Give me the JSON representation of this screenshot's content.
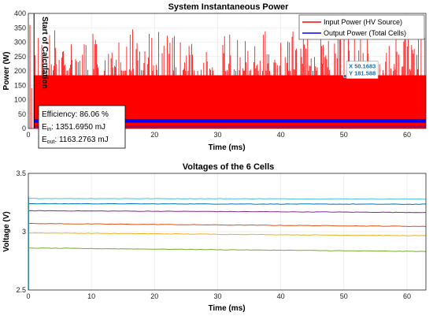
{
  "chart_data": [
    {
      "type": "line",
      "title": "System Instantaneous Power",
      "xlabel": "Time (ms)",
      "ylabel": "Power (W)",
      "xlim": [
        0,
        63
      ],
      "ylim": [
        0,
        400
      ],
      "xticks": [
        "0",
        "10",
        "20",
        "30",
        "40",
        "50",
        "60"
      ],
      "yticks": [
        "0",
        "50",
        "100",
        "150",
        "200",
        "250",
        "300",
        "350",
        "400"
      ],
      "grid": true,
      "legend_position": "top-right",
      "series": [
        {
          "name": "Input Power (HV Source)",
          "color": "#ff0000",
          "baseline_w": 185,
          "peak_range_w": [
            200,
            350
          ]
        },
        {
          "name": "Output Power (Total Cells)",
          "color": "#0000ff",
          "range_w": [
            20,
            33
          ]
        }
      ],
      "annotations": {
        "vertical_line_label": "Start of Calculation",
        "vertical_line_x_ms": 0.9,
        "efficiency_text": "Efficiency: 86.06 %",
        "ein_label": "E",
        "ein_sub": "in",
        "ein_value": ": 1351.6950 mJ",
        "eout_label": "E",
        "eout_sub": "out",
        "eout_value": ": 1163.2763 mJ"
      },
      "datatip": {
        "x": 50.1683,
        "y": 181.588,
        "x_text": "X 50.1683",
        "y_text": "Y 181.588"
      }
    },
    {
      "type": "line",
      "title": "Voltages of the 6 Cells",
      "xlabel": "Time (ms)",
      "ylabel": "Voltage (V)",
      "xlim": [
        0,
        63
      ],
      "ylim": [
        2.5,
        3.5
      ],
      "xticks": [
        "0",
        "10",
        "20",
        "30",
        "40",
        "50",
        "60"
      ],
      "yticks": [
        "2.5",
        "3",
        "3.5"
      ],
      "grid": true,
      "series": [
        {
          "color": "#4dbeee",
          "start_v": 3.285,
          "end_v": 3.28
        },
        {
          "color": "#0072bd",
          "start_v": 3.24,
          "end_v": 3.235
        },
        {
          "color": "#7e2f8e",
          "start_v": 3.18,
          "end_v": 3.165
        },
        {
          "color": "#d95319",
          "start_v": 3.07,
          "end_v": 3.045
        },
        {
          "color": "#edb120",
          "start_v": 2.99,
          "end_v": 2.965
        },
        {
          "color": "#77ac30",
          "start_v": 2.86,
          "end_v": 2.83
        }
      ]
    }
  ]
}
